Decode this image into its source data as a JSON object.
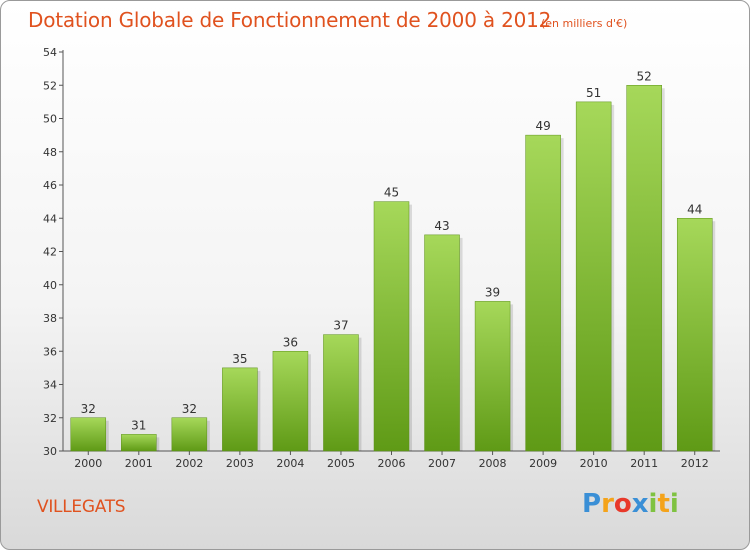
{
  "header": {
    "title": "Dotation Globale de Fonctionnement de 2000 à 2012",
    "subtitle": "(en milliers d'€)"
  },
  "footer": {
    "town": "VILLEGATS",
    "logo": "Proxiti",
    "logo_letters": [
      {
        "ch": "P",
        "color": "#3a8fd6"
      },
      {
        "ch": "r",
        "color": "#f4a31a"
      },
      {
        "ch": "o",
        "color": "#e8392a"
      },
      {
        "ch": "x",
        "color": "#3a8fd6"
      },
      {
        "ch": "i",
        "color": "#7fc241"
      },
      {
        "ch": "t",
        "color": "#f4a31a"
      },
      {
        "ch": "i",
        "color": "#7fc241"
      }
    ]
  },
  "colors": {
    "title": "#e0521f",
    "bar_top": "#a6d85a",
    "bar_bottom": "#5f9a16"
  },
  "chart_data": {
    "type": "bar",
    "categories": [
      "2000",
      "2001",
      "2002",
      "2003",
      "2004",
      "2005",
      "2006",
      "2007",
      "2008",
      "2009",
      "2010",
      "2011",
      "2012"
    ],
    "values": [
      32,
      31,
      32,
      35,
      36,
      37,
      45,
      43,
      39,
      49,
      51,
      52,
      44
    ],
    "title": "Dotation Globale de Fonctionnement de 2000 à 2012",
    "subtitle": "(en milliers d'€)",
    "ylim": [
      30,
      54
    ],
    "yticks": [
      30,
      32,
      34,
      36,
      38,
      40,
      42,
      44,
      46,
      48,
      50,
      52,
      54
    ],
    "grid": false,
    "data_labels": true
  }
}
